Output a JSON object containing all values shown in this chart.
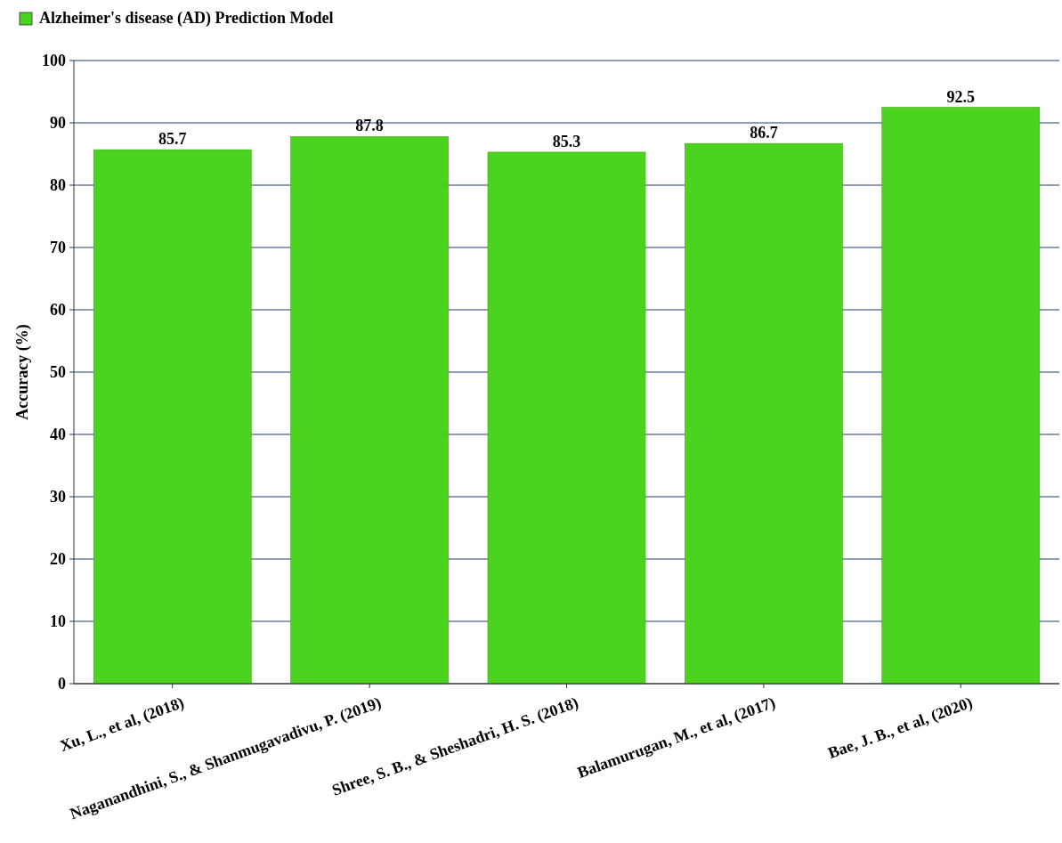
{
  "chart_data": {
    "type": "bar",
    "ylabel": "Accuracy (%)",
    "categories": [
      "Xu, L., et al, (2018)",
      "Naganandhini, S., & Shanmugavadivu, P. (2019)",
      "Shree, S. B., & Sheshadri, H. S. (2018)",
      "Balamurugan, M., et al, (2017)",
      "Bae, J. B., et al, (2020)"
    ],
    "series": [
      {
        "name": "Alzheimer's disease (AD) Prediction Model",
        "color": "#4cd31f",
        "values": [
          85.7,
          87.8,
          85.3,
          86.7,
          92.5
        ]
      }
    ],
    "ylim": [
      0,
      100
    ],
    "yticks": [
      0,
      10,
      20,
      30,
      40,
      50,
      60,
      70,
      80,
      90,
      100
    ],
    "grid": "y",
    "legend": "top left",
    "data_labels": true
  }
}
